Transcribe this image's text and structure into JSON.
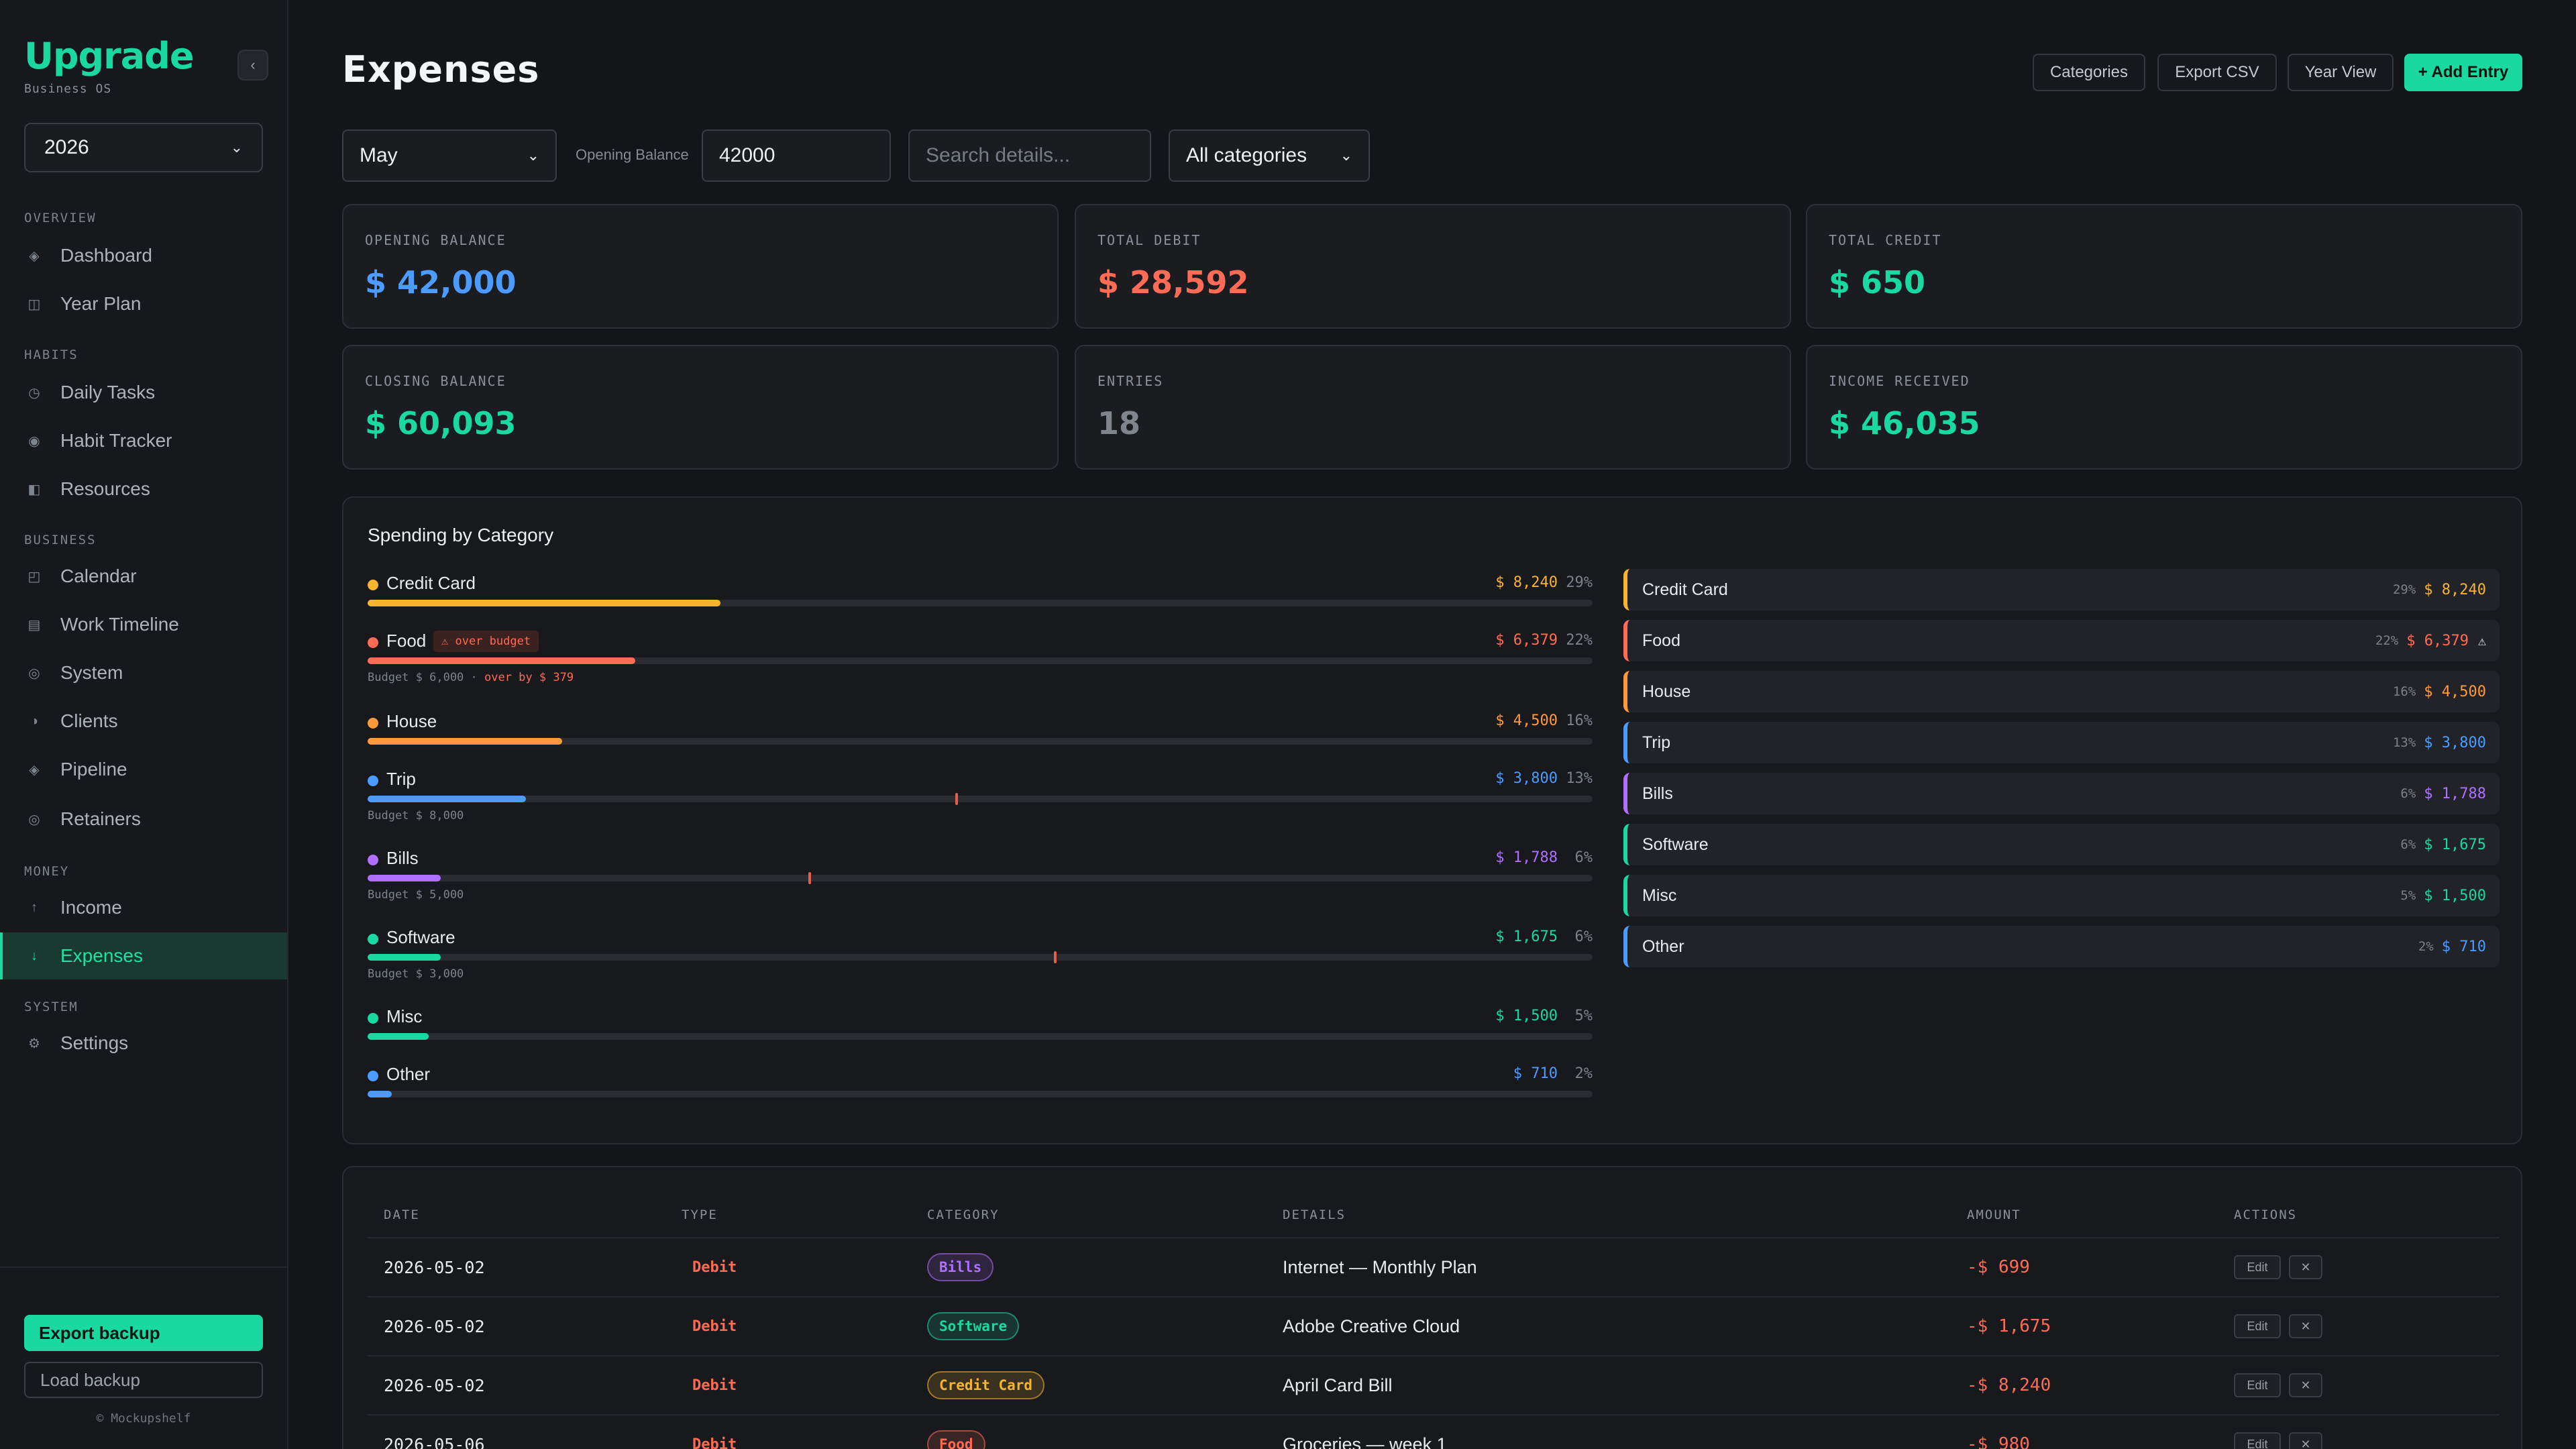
{
  "sidebar": {
    "brand": "Upgrade",
    "brand_sub": "Business OS",
    "collapse_glyph": "‹",
    "year": "2026",
    "sections": {
      "overview": "OVERVIEW",
      "habits": "HABITS",
      "business": "BUSINESS",
      "money": "MONEY",
      "system": "SYSTEM"
    },
    "items": [
      {
        "label": "Dashboard",
        "icon": "diamond-icon",
        "glyph": "◈"
      },
      {
        "label": "Year Plan",
        "icon": "calendar-grid-icon",
        "glyph": "◫"
      },
      {
        "label": "Daily Tasks",
        "icon": "clock-icon",
        "glyph": "◷"
      },
      {
        "label": "Habit Tracker",
        "icon": "target-icon",
        "glyph": "◉"
      },
      {
        "label": "Resources",
        "icon": "book-icon",
        "glyph": "◧"
      },
      {
        "label": "Calendar",
        "icon": "calendar-icon",
        "glyph": "◰"
      },
      {
        "label": "Work Timeline",
        "icon": "timeline-icon",
        "glyph": "▤"
      },
      {
        "label": "System",
        "icon": "system-icon",
        "glyph": "◎"
      },
      {
        "label": "Clients",
        "icon": "clients-icon",
        "glyph": "◑"
      },
      {
        "label": "Pipeline",
        "icon": "pipeline-icon",
        "glyph": "◈"
      },
      {
        "label": "Retainers",
        "icon": "retainer-icon",
        "glyph": "◎"
      },
      {
        "label": "Income",
        "icon": "arrow-up-icon",
        "glyph": "↑"
      },
      {
        "label": "Expenses",
        "icon": "arrow-down-icon",
        "glyph": "↓"
      },
      {
        "label": "Settings",
        "icon": "gear-icon",
        "glyph": "⚙"
      }
    ],
    "export_backup": "Export backup",
    "load_backup": "Load backup",
    "footer": "© Mockupshelf"
  },
  "header": {
    "title": "Expenses",
    "buttons": {
      "categories": "Categories",
      "export_csv": "Export CSV",
      "year_view": "Year View",
      "add_entry": "+ Add Entry"
    }
  },
  "filters": {
    "month": "May",
    "opening_balance_label": "Opening Balance",
    "opening_balance_value": "42000",
    "search_placeholder": "Search details...",
    "category": "All categories"
  },
  "stats": {
    "opening_balance": {
      "label": "OPENING BALANCE",
      "value": "$ 42,000",
      "color": "#4c9bff"
    },
    "total_debit": {
      "label": "TOTAL DEBIT",
      "value": "$ 28,592",
      "color": "#ff6b55"
    },
    "total_credit": {
      "label": "TOTAL CREDIT",
      "value": "$ 650",
      "color": "#19d9a0"
    },
    "closing_balance": {
      "label": "CLOSING BALANCE",
      "value": "$ 60,093",
      "color": "#19d9a0"
    },
    "entries": {
      "label": "ENTRIES",
      "value": "18",
      "color": "#80858d"
    },
    "income_received": {
      "label": "INCOME RECEIVED",
      "value": "$ 46,035",
      "color": "#19d9a0"
    }
  },
  "spending": {
    "title": "Spending by Category",
    "over_budget_badge": "⚠ over budget",
    "categories": [
      {
        "name": "Credit Card",
        "amount": "$ 8,240",
        "pct": "29%",
        "share": 0.29,
        "color": "#f5b531"
      },
      {
        "name": "Food",
        "amount": "$ 6,379",
        "pct": "22%",
        "share": 0.22,
        "color": "#ff6b55",
        "over": true,
        "budget_text": "Budget $ 6,000 · ",
        "over_text": "over by $ 379"
      },
      {
        "name": "House",
        "amount": "$ 4,500",
        "pct": "16%",
        "share": 0.16,
        "color": "#ff9a3c"
      },
      {
        "name": "Trip",
        "amount": "$ 3,800",
        "pct": "13%",
        "share": 0.13,
        "color": "#4c9bff",
        "budget_text": "Budget $ 8,000",
        "budget_share": 0.48
      },
      {
        "name": "Bills",
        "amount": "$ 1,788",
        "pct": "6%",
        "share": 0.06,
        "color": "#b070ff",
        "budget_text": "Budget $ 5,000",
        "budget_share": 0.36
      },
      {
        "name": "Software",
        "amount": "$ 1,675",
        "pct": "6%",
        "share": 0.06,
        "color": "#19d9a0",
        "budget_text": "Budget $ 3,000",
        "budget_share": 0.56
      },
      {
        "name": "Misc",
        "amount": "$ 1,500",
        "pct": "5%",
        "share": 0.05,
        "color": "#19d9a0"
      },
      {
        "name": "Other",
        "amount": "$ 710",
        "pct": "2%",
        "share": 0.02,
        "color": "#4c9bff"
      }
    ]
  },
  "table": {
    "headers": {
      "date": "DATE",
      "type": "TYPE",
      "category": "CATEGORY",
      "details": "DETAILS",
      "amount": "AMOUNT",
      "actions": "ACTIONS"
    },
    "edit_label": "Edit",
    "delete_glyph": "✕",
    "rows": [
      {
        "date": "2026-05-02",
        "type": "Debit",
        "category": "Bills",
        "cat_color": "#b070ff",
        "details": "Internet — Monthly Plan",
        "amount": "-$ 699"
      },
      {
        "date": "2026-05-02",
        "type": "Debit",
        "category": "Software",
        "cat_color": "#19d9a0",
        "details": "Adobe Creative Cloud",
        "amount": "-$ 1,675"
      },
      {
        "date": "2026-05-02",
        "type": "Debit",
        "category": "Credit Card",
        "cat_color": "#f5b531",
        "details": "April Card Bill",
        "amount": "-$ 8,240"
      },
      {
        "date": "2026-05-06",
        "type": "Debit",
        "category": "Food",
        "cat_color": "#ff6b55",
        "details": "Groceries — week 1",
        "amount": "-$ 980"
      }
    ]
  }
}
